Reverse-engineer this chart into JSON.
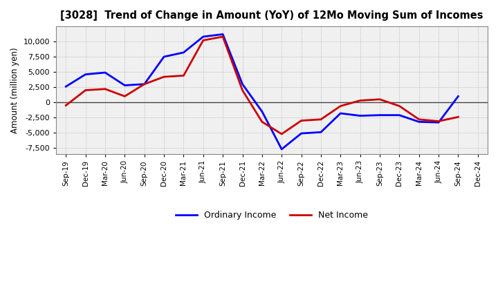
{
  "title": "[3028]  Trend of Change in Amount (YoY) of 12Mo Moving Sum of Incomes",
  "ylabel": "Amount (million yen)",
  "background_color": "#ffffff",
  "plot_bg_color": "#f0f0f0",
  "x_labels": [
    "Sep-19",
    "Dec-19",
    "Mar-20",
    "Jun-20",
    "Sep-20",
    "Dec-20",
    "Mar-21",
    "Jun-21",
    "Sep-21",
    "Dec-21",
    "Mar-22",
    "Jun-22",
    "Sep-22",
    "Dec-22",
    "Mar-23",
    "Jun-23",
    "Sep-23",
    "Dec-23",
    "Mar-24",
    "Jun-24",
    "Sep-24",
    "Dec-24"
  ],
  "ordinary_income": [
    2600,
    4600,
    4900,
    2800,
    3000,
    7500,
    8200,
    10800,
    11200,
    3000,
    -1500,
    -7700,
    -5100,
    -4900,
    -1800,
    -2200,
    -2100,
    -2100,
    -3200,
    -3300,
    1000,
    null
  ],
  "net_income": [
    -500,
    2000,
    2200,
    1000,
    3000,
    4200,
    4400,
    10200,
    10800,
    2000,
    -3200,
    -5200,
    -3000,
    -2800,
    -600,
    300,
    500,
    -600,
    -2800,
    -3100,
    -2400,
    null
  ],
  "ordinary_income_color": "#0000ff",
  "net_income_color": "#cc0000",
  "ylim": [
    -8500,
    12500
  ],
  "yticks": [
    -7500,
    -5000,
    -2500,
    0,
    2500,
    5000,
    7500,
    10000
  ],
  "legend_labels": [
    "Ordinary Income",
    "Net Income"
  ],
  "line_width": 2.0
}
